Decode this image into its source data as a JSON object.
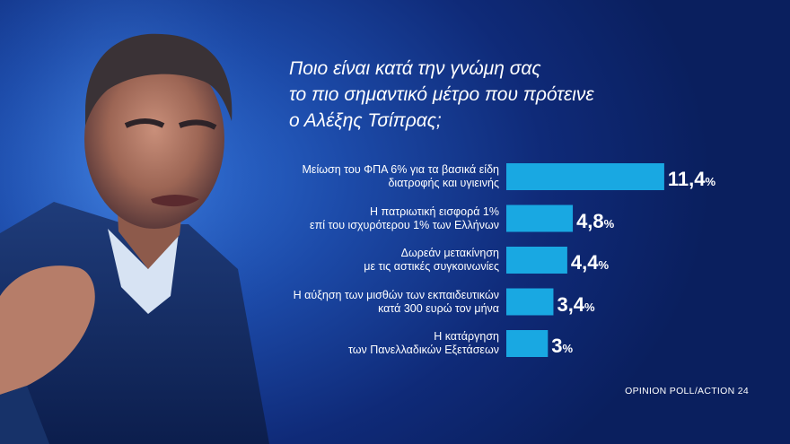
{
  "title_lines": [
    "Ποιο είναι κατά την γνώμη σας",
    "το πιο σημαντικό μέτρο που πρότεινε",
    "ο Αλέξης Τσίπρας;"
  ],
  "source": "OPINION POLL/ACTION 24",
  "colors": {
    "bar": "#19a8e2",
    "background": "#0f2a78"
  },
  "chart_data": {
    "type": "bar",
    "orientation": "horizontal",
    "categories": [
      [
        "Μείωση του ΦΠΑ 6% για τα βασικά είδη",
        "διατροφής και υγιεινής"
      ],
      [
        "Η πατριωτική εισφορά 1%",
        "επί του ισχυρότερου 1% των Ελλήνων"
      ],
      [
        "Δωρεάν μετακίνηση",
        "με τις αστικές συγκοινωνίες"
      ],
      [
        "Η αύξηση των μισθών των εκπαιδευτικών",
        "κατά 300 ευρώ τον μήνα"
      ],
      [
        "Η κατάργηση",
        "των Πανελλαδικών Εξετάσεων"
      ]
    ],
    "values": [
      11.4,
      4.8,
      4.4,
      3.4,
      3
    ],
    "value_labels": [
      "11,4",
      "4,8",
      "4,4",
      "3,4",
      "3"
    ],
    "unit": "%",
    "grid": false
  }
}
